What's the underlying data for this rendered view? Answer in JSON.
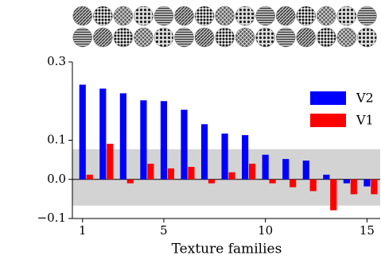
{
  "chart_data": {
    "type": "bar",
    "x": [
      1,
      2,
      3,
      4,
      5,
      6,
      7,
      8,
      9,
      10,
      11,
      12,
      13,
      14,
      15
    ],
    "xlabel": "Texture families",
    "xlim": [
      0.5,
      15.65
    ],
    "xticks": [
      1,
      5,
      10,
      15
    ],
    "ylim": [
      -0.1,
      0.3
    ],
    "yticks": [
      {
        "value": -0.1,
        "label": "−0.1"
      },
      {
        "value": 0,
        "label": "0.0"
      },
      0.1,
      0.3
    ],
    "band": [
      -0.067,
      0.077
    ],
    "band_color": "#d3d3d3",
    "legend": "upper right",
    "series": [
      {
        "name": "V2",
        "color": "#0000ff",
        "values": [
          0.242,
          0.232,
          0.22,
          0.202,
          0.2,
          0.178,
          0.141,
          0.117,
          0.113,
          0.063,
          0.052,
          0.048,
          0.012,
          -0.01,
          -0.018
        ]
      },
      {
        "name": "V1",
        "color": "#ff0000",
        "values": [
          0.012,
          0.091,
          -0.01,
          0.04,
          0.028,
          0.032,
          -0.01,
          0.018,
          0.04,
          -0.01,
          -0.02,
          -0.03,
          -0.079,
          -0.038,
          -0.038
        ]
      }
    ]
  }
}
